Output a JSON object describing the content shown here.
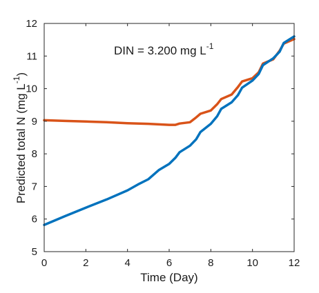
{
  "chart_data": {
    "type": "line",
    "title": "",
    "annotation": {
      "prefix": "DIN = 3.200 mg L",
      "superscript": "-1"
    },
    "xlabel": "Time (Day)",
    "ylabel": {
      "prefix": "Predicted total N (mg L",
      "superscript": "-1",
      "suffix": ")"
    },
    "xlim": [
      0,
      12
    ],
    "ylim": [
      5,
      12
    ],
    "xticks": [
      0,
      2,
      4,
      6,
      8,
      10,
      12
    ],
    "yticks": [
      5,
      6,
      7,
      8,
      9,
      10,
      11,
      12
    ],
    "grid": false,
    "legend": "none",
    "series": [
      {
        "color": "#D95319",
        "x": [
          0,
          1,
          2,
          3,
          4,
          5,
          6.0,
          6.3,
          6.5,
          7.0,
          7.3,
          7.5,
          8.0,
          8.3,
          8.5,
          9.0,
          9.3,
          9.5,
          10.0,
          10.3,
          10.5,
          11.0,
          11.3,
          11.5,
          12
        ],
        "y": [
          9.03,
          9.01,
          8.99,
          8.97,
          8.94,
          8.92,
          8.89,
          8.89,
          8.93,
          8.97,
          9.12,
          9.23,
          9.33,
          9.52,
          9.68,
          9.82,
          10.05,
          10.22,
          10.32,
          10.5,
          10.77,
          10.9,
          11.16,
          11.38,
          11.52
        ]
      },
      {
        "color": "#0072BD",
        "x": [
          0,
          1,
          2,
          3,
          4,
          4.5,
          5,
          5.5,
          6.0,
          6.3,
          6.5,
          7.0,
          7.3,
          7.5,
          8.0,
          8.3,
          8.5,
          9.0,
          9.3,
          9.5,
          10.0,
          10.3,
          10.5,
          11.0,
          11.3,
          11.5,
          12
        ],
        "y": [
          5.82,
          6.09,
          6.35,
          6.6,
          6.88,
          7.06,
          7.22,
          7.5,
          7.69,
          7.88,
          8.05,
          8.25,
          8.45,
          8.67,
          8.92,
          9.15,
          9.38,
          9.58,
          9.8,
          10.03,
          10.25,
          10.45,
          10.72,
          10.93,
          11.13,
          11.4,
          11.6
        ]
      }
    ]
  }
}
